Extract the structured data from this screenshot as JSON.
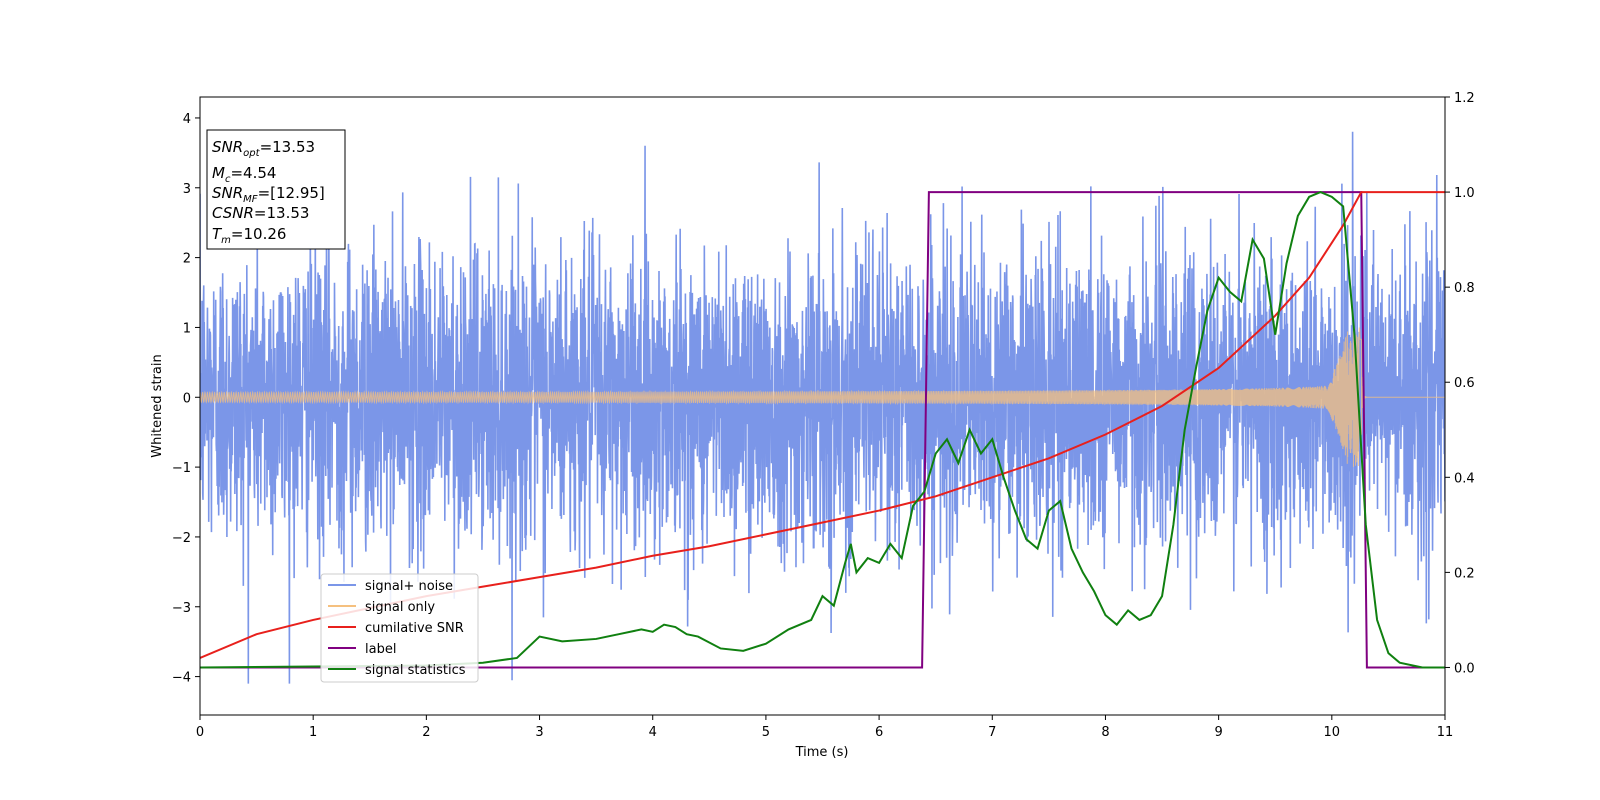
{
  "chart_data": {
    "type": "line",
    "xlabel": "Time (s)",
    "ylabel": "Whitened strain",
    "xlim": [
      0,
      11
    ],
    "ylim_left": [
      -4.55,
      4.3
    ],
    "ylim_right": [
      -0.1,
      1.2
    ],
    "xticks": [
      0,
      1,
      2,
      3,
      4,
      5,
      6,
      7,
      8,
      9,
      10,
      11
    ],
    "yticks_left": [
      -4,
      -3,
      -2,
      -1,
      0,
      1,
      2,
      3,
      4
    ],
    "yticks_right": [
      0.0,
      0.2,
      0.4,
      0.6,
      0.8,
      1.0,
      1.2
    ],
    "legend_position": "lower-left",
    "series": [
      {
        "name": "signal+ noise",
        "axis": "left",
        "color": "#7b96e8",
        "kind": "noise",
        "std": 1.0,
        "peak_range": [
          -4.1,
          3.95
        ]
      },
      {
        "name": "signal only",
        "axis": "left",
        "color": "#f5c07f",
        "kind": "chirp",
        "t_merge": 10.26,
        "amplitude_start": 0.07,
        "amplitude_peak": 1.0
      },
      {
        "name": "cumilative SNR",
        "axis": "right",
        "color": "#e8201c",
        "x": [
          0,
          0.5,
          1,
          1.5,
          2,
          2.5,
          3,
          3.5,
          4,
          4.5,
          5,
          5.5,
          6,
          6.5,
          7,
          7.5,
          8,
          8.5,
          9,
          9.5,
          9.8,
          10.1,
          10.26,
          10.27,
          11
        ],
        "y": [
          0.02,
          0.07,
          0.1,
          0.125,
          0.15,
          0.17,
          0.19,
          0.21,
          0.235,
          0.255,
          0.28,
          0.305,
          0.33,
          0.36,
          0.4,
          0.44,
          0.49,
          0.55,
          0.63,
          0.74,
          0.82,
          0.93,
          1.0,
          1.0,
          1.0
        ]
      },
      {
        "name": "label",
        "axis": "right",
        "color": "#800080",
        "x": [
          0,
          6.38,
          6.44,
          10.26,
          10.31,
          11
        ],
        "y": [
          0.0,
          0.0,
          1.0,
          1.0,
          0.0,
          0.0
        ]
      },
      {
        "name": "signal statistics",
        "axis": "right",
        "color": "#108010",
        "x": [
          0,
          1,
          2,
          2.5,
          2.8,
          3.0,
          3.2,
          3.5,
          3.7,
          3.9,
          4.0,
          4.1,
          4.2,
          4.3,
          4.4,
          4.6,
          4.8,
          5.0,
          5.2,
          5.4,
          5.5,
          5.6,
          5.7,
          5.75,
          5.8,
          5.9,
          6.0,
          6.1,
          6.2,
          6.3,
          6.4,
          6.5,
          6.6,
          6.7,
          6.8,
          6.9,
          7.0,
          7.1,
          7.2,
          7.3,
          7.4,
          7.5,
          7.6,
          7.7,
          7.8,
          7.9,
          8.0,
          8.1,
          8.2,
          8.3,
          8.4,
          8.5,
          8.6,
          8.7,
          8.8,
          8.9,
          9.0,
          9.1,
          9.2,
          9.3,
          9.4,
          9.5,
          9.6,
          9.7,
          9.8,
          9.9,
          10.0,
          10.1,
          10.2,
          10.3,
          10.4,
          10.5,
          10.6,
          10.8,
          11
        ],
        "y": [
          0.0,
          0.002,
          0.004,
          0.01,
          0.02,
          0.065,
          0.055,
          0.06,
          0.07,
          0.08,
          0.075,
          0.09,
          0.085,
          0.07,
          0.065,
          0.04,
          0.035,
          0.05,
          0.08,
          0.1,
          0.15,
          0.13,
          0.22,
          0.26,
          0.2,
          0.23,
          0.22,
          0.26,
          0.23,
          0.34,
          0.37,
          0.45,
          0.48,
          0.43,
          0.5,
          0.45,
          0.48,
          0.4,
          0.33,
          0.27,
          0.25,
          0.33,
          0.35,
          0.25,
          0.2,
          0.16,
          0.11,
          0.09,
          0.12,
          0.1,
          0.11,
          0.15,
          0.3,
          0.5,
          0.63,
          0.75,
          0.82,
          0.79,
          0.77,
          0.9,
          0.86,
          0.7,
          0.85,
          0.95,
          0.99,
          1.0,
          0.99,
          0.97,
          0.7,
          0.3,
          0.1,
          0.03,
          0.01,
          0.0,
          0.0
        ]
      }
    ],
    "stats_box": {
      "snr_opt_sym": "SNR",
      "snr_opt_sub": "opt",
      "snr_opt_val": "=13.53",
      "mc_sym": "M",
      "mc_sub": "c",
      "mc_val": "=4.54",
      "snr_mf_sym": "SNR",
      "snr_mf_sub": "MF",
      "snr_mf_val": "=[12.95]",
      "csnr_sym": "CSNR",
      "csnr_val": "=13.53",
      "tm_sym": "T",
      "tm_sub": "m",
      "tm_val": "=10.26"
    }
  }
}
